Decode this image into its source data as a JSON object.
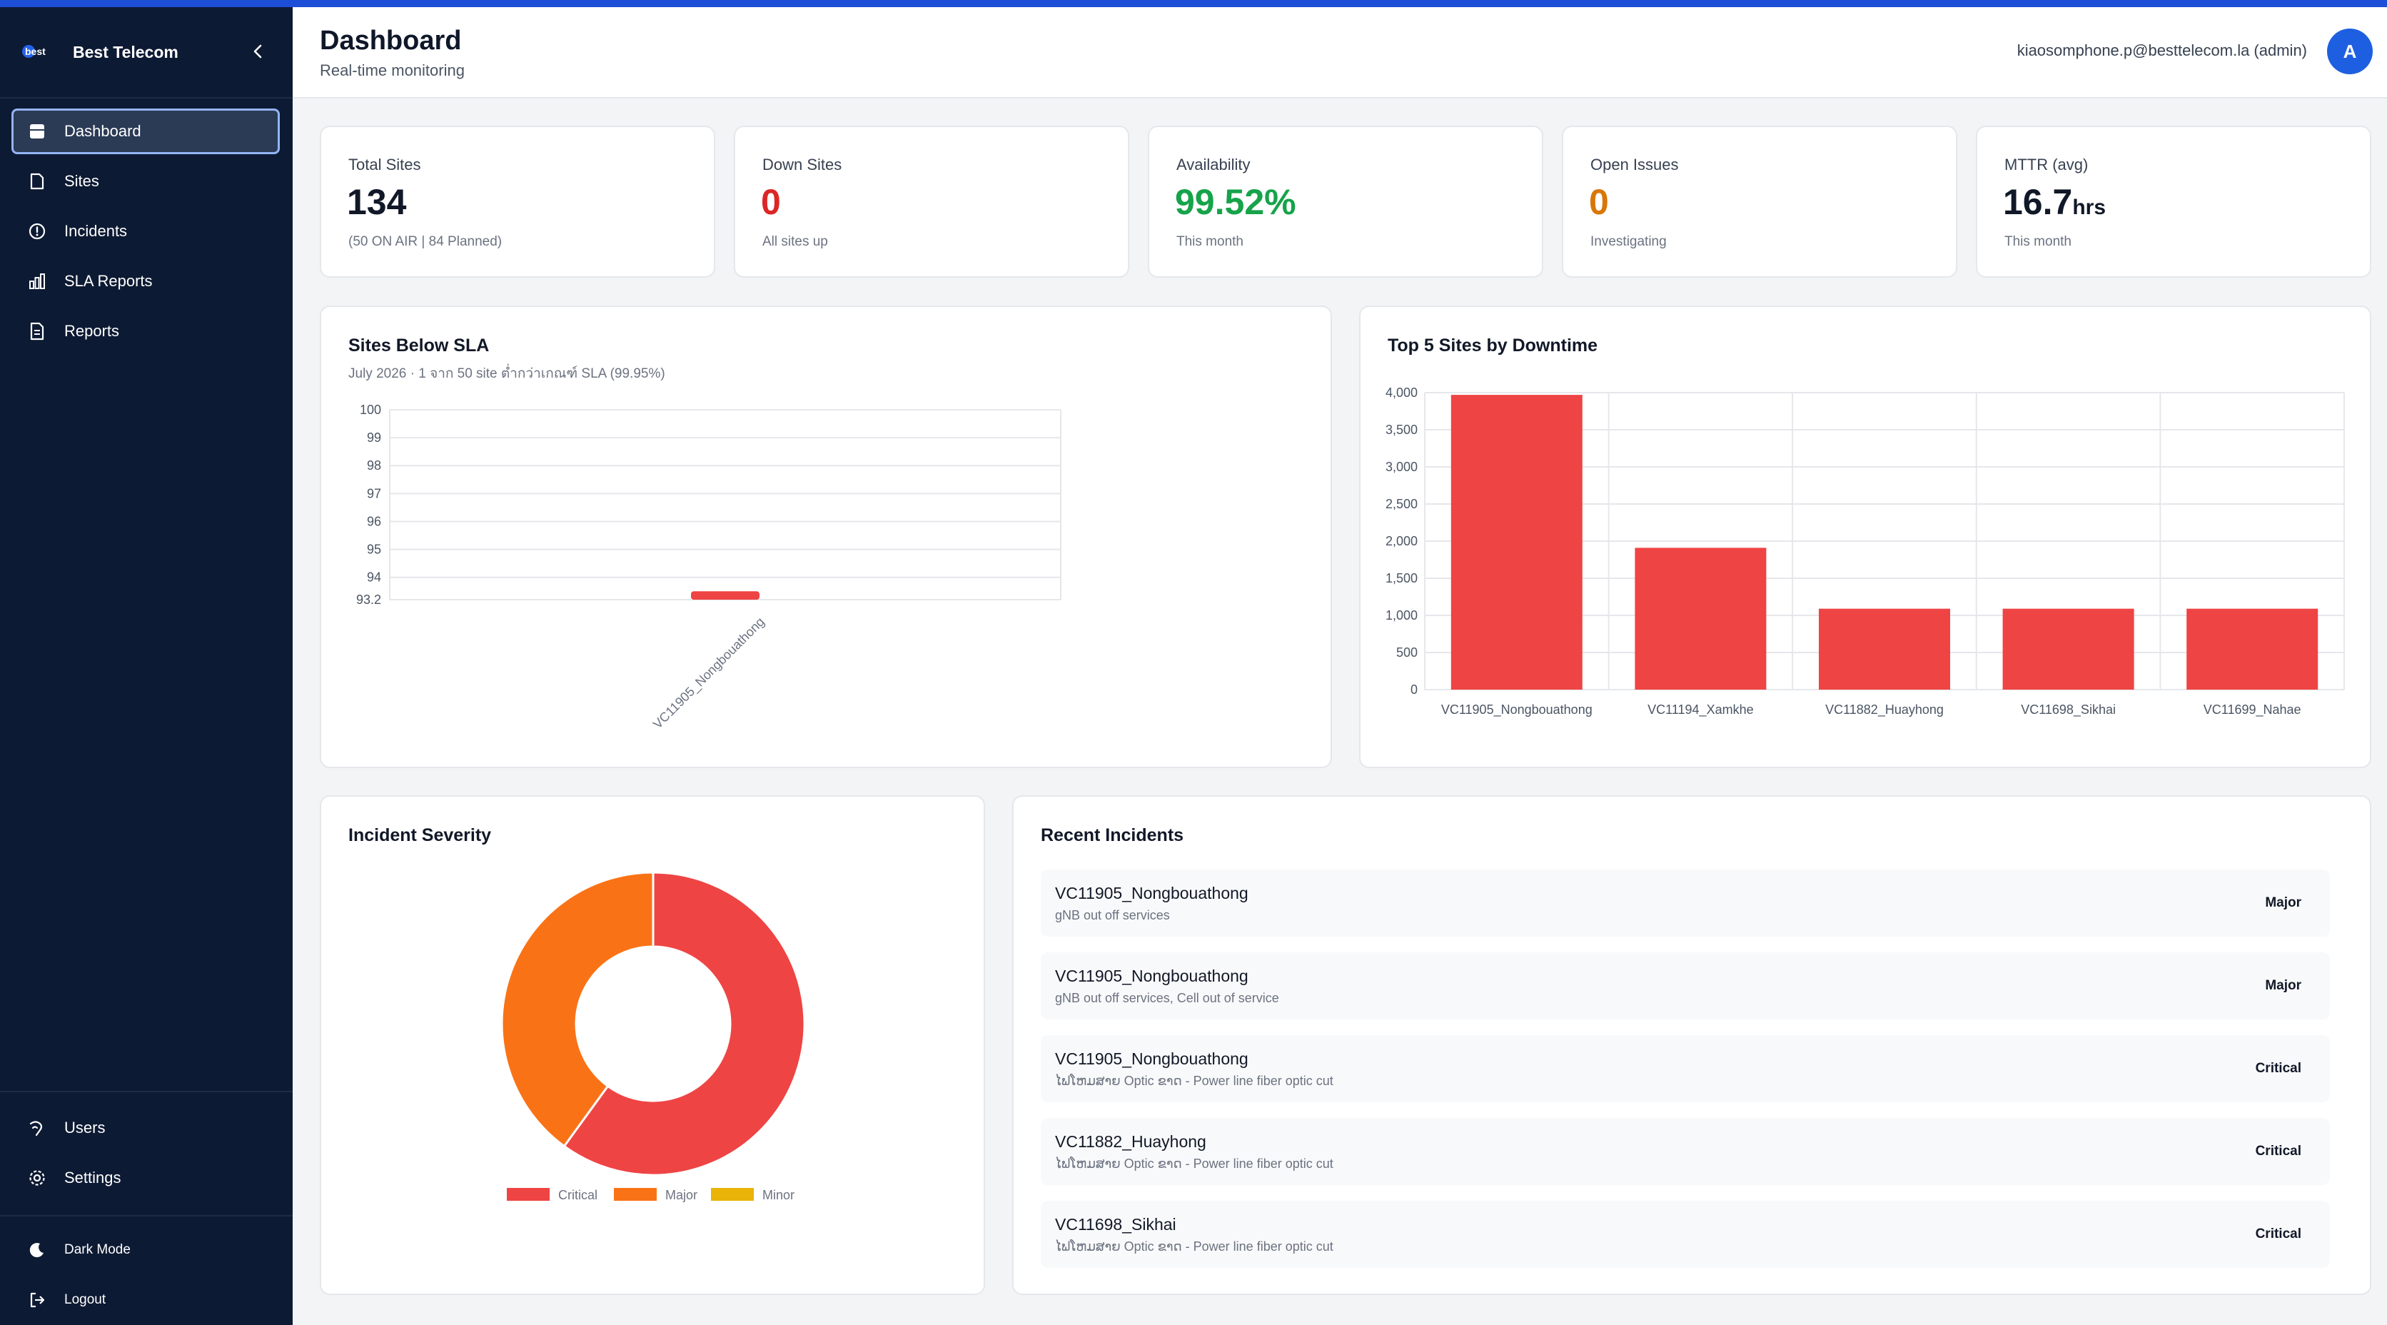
{
  "brand": {
    "name": "Best Telecom",
    "logo_text": "best"
  },
  "nav": [
    {
      "label": "Dashboard",
      "icon": "dashboard-icon",
      "active": true
    },
    {
      "label": "Sites",
      "icon": "file-icon"
    },
    {
      "label": "Incidents",
      "icon": "alert-circle-icon"
    },
    {
      "label": "SLA Reports",
      "icon": "bar-chart-icon"
    },
    {
      "label": "Reports",
      "icon": "document-icon"
    }
  ],
  "nav_bottom": [
    {
      "label": "Users",
      "icon": "users-icon"
    },
    {
      "label": "Settings",
      "icon": "gear-icon"
    }
  ],
  "nav_util": [
    {
      "label": "Dark Mode",
      "icon": "moon-icon"
    },
    {
      "label": "Logout",
      "icon": "logout-icon"
    }
  ],
  "header": {
    "title": "Dashboard",
    "subtitle": "Real-time monitoring",
    "user": "kiaosomphone.p@besttelecom.la (admin)",
    "avatar_initial": "A"
  },
  "stats": [
    {
      "label": "Total Sites",
      "value": "134",
      "unit": "",
      "sub": "(50 ON AIR | 84 Planned)",
      "color": "#111827"
    },
    {
      "label": "Down Sites",
      "value": "0",
      "unit": "",
      "sub": "All sites up",
      "color": "#dc2626"
    },
    {
      "label": "Availability",
      "value": "99.52%",
      "unit": "",
      "sub": "This month",
      "color": "#16a34a"
    },
    {
      "label": "Open Issues",
      "value": "0",
      "unit": "",
      "sub": "Investigating",
      "color": "#d97706"
    },
    {
      "label": "MTTR (avg)",
      "value": "16.7",
      "unit": "hrs",
      "sub": "This month",
      "color": "#111827"
    }
  ],
  "sla_panel": {
    "title": "Sites Below SLA",
    "subtitle": "July 2026 · 1 จาก 50 site ต่ำกว่าเกณฑ์ SLA (99.95%)"
  },
  "top5_panel": {
    "title": "Top 5 Sites by Downtime"
  },
  "severity_panel": {
    "title": "Incident Severity"
  },
  "recent_panel": {
    "title": "Recent Incidents"
  },
  "chart_data": [
    {
      "type": "bar",
      "title": "Sites Below SLA",
      "categories": [
        "VC11905_Nongbouathong"
      ],
      "values": [
        93.5
      ],
      "ylim": [
        93.2,
        100
      ],
      "yticks": [
        93.2,
        94,
        95,
        96,
        97,
        98,
        99,
        100
      ],
      "ytick_labels": [
        "93.2",
        "94",
        "95",
        "96",
        "97",
        "98",
        "99",
        "100"
      ],
      "color": "#ef4444",
      "grid": true
    },
    {
      "type": "bar",
      "title": "Top 5 Sites by Downtime",
      "categories": [
        "VC11905_Nongbouathong",
        "VC11194_Xamkhe",
        "VC11882_Huayhong",
        "VC11698_Sikhai",
        "VC11699_Nahae"
      ],
      "values": [
        3970,
        1910,
        1090,
        1090,
        1090
      ],
      "ylim": [
        0,
        4000
      ],
      "yticks": [
        0,
        500,
        1000,
        1500,
        2000,
        2500,
        3000,
        3500,
        4000
      ],
      "ytick_labels": [
        "0",
        "500",
        "1,000",
        "1,500",
        "2,000",
        "2,500",
        "3,000",
        "3,500",
        "4,000"
      ],
      "color": "#ef4444",
      "grid": true
    },
    {
      "type": "pie",
      "title": "Incident Severity",
      "categories": [
        "Critical",
        "Major",
        "Minor"
      ],
      "values": [
        3,
        2,
        0
      ],
      "colors": [
        "#ef4444",
        "#f97316",
        "#eab308"
      ],
      "legend": "bottom"
    }
  ],
  "incidents": [
    {
      "site": "VC11905_Nongbouathong",
      "desc": "gNB out off services",
      "severity": "Major"
    },
    {
      "site": "VC11905_Nongbouathong",
      "desc": "gNB out off services, Cell out of service",
      "severity": "Major"
    },
    {
      "site": "VC11905_Nongbouathong",
      "desc": "ໄຟໂຫມສາຍ Optic ຂາດ - Power line fiber optic cut",
      "severity": "Critical"
    },
    {
      "site": "VC11882_Huayhong",
      "desc": "ໄຟໂຫມສາຍ Optic ຂາດ - Power line fiber optic cut",
      "severity": "Critical"
    },
    {
      "site": "VC11698_Sikhai",
      "desc": "ໄຟໂຫມສາຍ Optic ຂາດ - Power line fiber optic cut",
      "severity": "Critical"
    }
  ]
}
